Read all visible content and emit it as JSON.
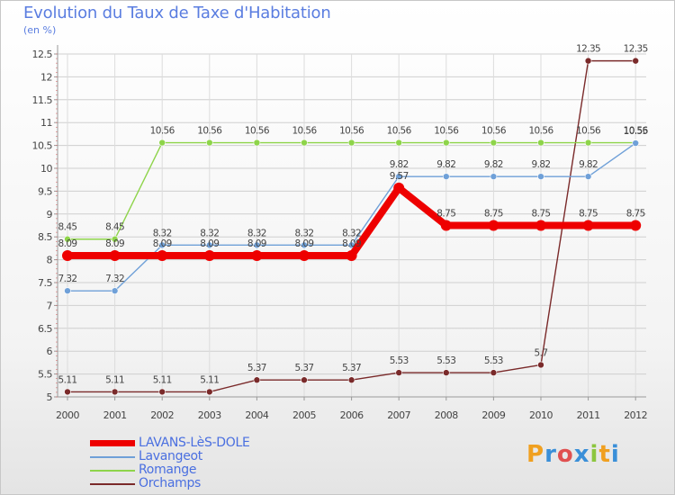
{
  "header": {
    "title": "Evolution du Taux de Taxe d'Habitation",
    "subtitle": "(en %)"
  },
  "logo": {
    "text": "Proxiti"
  },
  "chart_data": {
    "type": "line",
    "title": "Evolution du Taux de Taxe d'Habitation",
    "subtitle": "(en %)",
    "x": [
      "2000",
      "2001",
      "2002",
      "2003",
      "2004",
      "2005",
      "2006",
      "2007",
      "2008",
      "2009",
      "2010",
      "2011",
      "2012"
    ],
    "ylim": [
      5,
      12.5
    ],
    "yticks": [
      "5",
      "5.5",
      "6",
      "6.5",
      "7",
      "7.5",
      "8",
      "8.5",
      "9",
      "9.5",
      "10",
      "10.5",
      "11",
      "11.5",
      "12",
      "12.5"
    ],
    "grid": true,
    "legend_position": "bottom-left",
    "series": [
      {
        "name": "LAVANS-LèS-DOLE",
        "color": "#ee0000",
        "values": [
          8.09,
          8.09,
          8.09,
          8.09,
          8.09,
          8.09,
          8.09,
          9.57,
          8.75,
          8.75,
          8.75,
          8.75,
          8.75
        ],
        "labels": [
          "8.09",
          "8.09",
          "8.09",
          "8.09",
          "8.09",
          "8.09",
          "8.09",
          "9.57",
          "8.75",
          "8.75",
          "8.75",
          "8.75",
          "8.75"
        ]
      },
      {
        "name": "Lavangeot",
        "color": "#6fa0d8",
        "values": [
          7.32,
          7.32,
          8.32,
          8.32,
          8.32,
          8.32,
          8.32,
          9.82,
          9.82,
          9.82,
          9.82,
          9.82,
          10.55
        ],
        "labels": [
          "7.32",
          "7.32",
          "8.32",
          "8.32",
          "8.32",
          "8.32",
          "8.32",
          "9.82",
          "9.82",
          "9.82",
          "9.82",
          "9.82",
          "10.55"
        ]
      },
      {
        "name": "Romange",
        "color": "#8ed44a",
        "values": [
          8.45,
          8.45,
          10.56,
          10.56,
          10.56,
          10.56,
          10.56,
          10.56,
          10.56,
          10.56,
          10.56,
          10.56,
          10.56
        ],
        "labels": [
          "8.45",
          "8.45",
          "10.56",
          "10.56",
          "10.56",
          "10.56",
          "10.56",
          "10.56",
          "10.56",
          "10.56",
          "10.56",
          "10.56",
          "10.56"
        ]
      },
      {
        "name": "Orchamps",
        "color": "#7a2a2a",
        "values": [
          5.11,
          5.11,
          5.11,
          5.11,
          5.37,
          5.37,
          5.37,
          5.53,
          5.53,
          5.53,
          5.7,
          12.35,
          12.35
        ],
        "labels": [
          "5.11",
          "5.11",
          "5.11",
          "5.11",
          "5.37",
          "5.37",
          "5.37",
          "5.53",
          "5.53",
          "5.53",
          "5.7",
          "12.35",
          "12.35"
        ]
      }
    ]
  }
}
